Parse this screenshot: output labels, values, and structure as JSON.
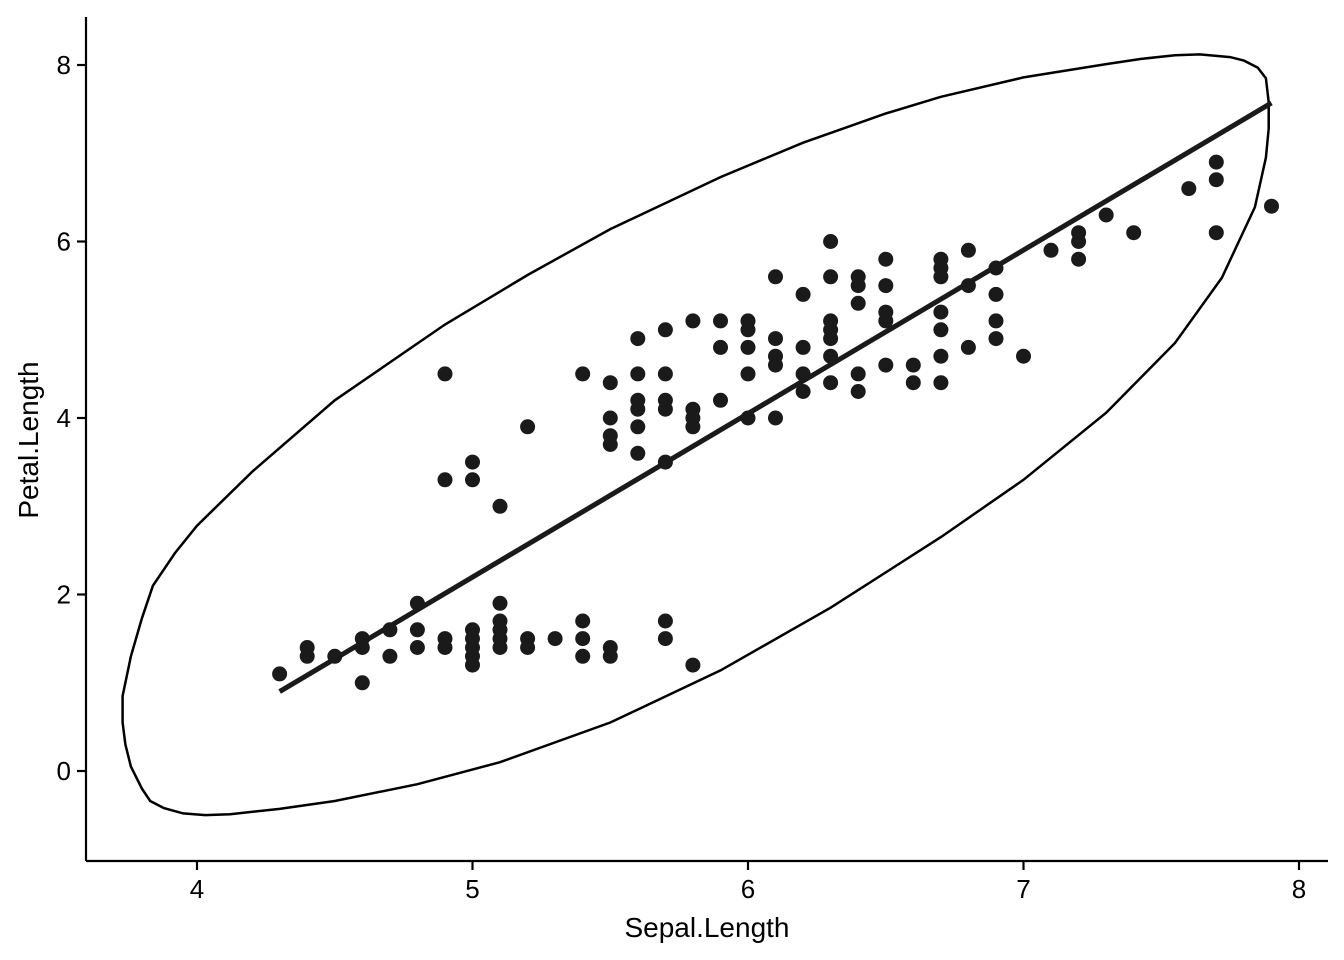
{
  "chart_data": {
    "type": "scatter",
    "xlabel": "Sepal.Length",
    "ylabel": "Petal.Length",
    "xlim": [
      3.6,
      8.1
    ],
    "ylim": [
      -1.0,
      8.5
    ],
    "x_ticks": [
      4,
      5,
      6,
      7,
      8
    ],
    "y_ticks": [
      0,
      2,
      4,
      6,
      8
    ],
    "x_tick_labels": [
      "4",
      "5",
      "6",
      "7",
      "8"
    ],
    "y_tick_labels": [
      "0",
      "2",
      "4",
      "6",
      "8"
    ],
    "grid": false,
    "colors": {
      "points": "#1a1a1a",
      "line": "#1a1a1a",
      "ellipse": "#000000",
      "axis": "#000000"
    },
    "points": [
      [
        4.3,
        1.1
      ],
      [
        4.4,
        1.3
      ],
      [
        4.4,
        1.4
      ],
      [
        4.5,
        1.3
      ],
      [
        4.6,
        1.0
      ],
      [
        4.6,
        1.4
      ],
      [
        4.6,
        1.5
      ],
      [
        4.7,
        1.3
      ],
      [
        4.7,
        1.6
      ],
      [
        4.8,
        1.4
      ],
      [
        4.8,
        1.6
      ],
      [
        4.8,
        1.9
      ],
      [
        4.9,
        1.4
      ],
      [
        4.9,
        1.5
      ],
      [
        5.0,
        1.2
      ],
      [
        5.0,
        1.3
      ],
      [
        5.0,
        1.4
      ],
      [
        5.0,
        1.5
      ],
      [
        5.0,
        1.6
      ],
      [
        5.1,
        1.4
      ],
      [
        5.1,
        1.5
      ],
      [
        5.1,
        1.6
      ],
      [
        5.1,
        1.7
      ],
      [
        5.1,
        1.9
      ],
      [
        5.2,
        1.4
      ],
      [
        5.2,
        1.5
      ],
      [
        5.3,
        1.5
      ],
      [
        5.4,
        1.3
      ],
      [
        5.4,
        1.5
      ],
      [
        5.4,
        1.7
      ],
      [
        5.5,
        1.3
      ],
      [
        5.5,
        1.4
      ],
      [
        5.7,
        1.5
      ],
      [
        5.7,
        1.7
      ],
      [
        5.8,
        1.2
      ],
      [
        4.9,
        3.3
      ],
      [
        4.9,
        4.5
      ],
      [
        5.0,
        3.3
      ],
      [
        5.0,
        3.5
      ],
      [
        5.1,
        3.0
      ],
      [
        5.2,
        3.9
      ],
      [
        5.4,
        4.5
      ],
      [
        5.5,
        3.7
      ],
      [
        5.5,
        3.8
      ],
      [
        5.5,
        4.0
      ],
      [
        5.5,
        4.4
      ],
      [
        5.6,
        3.6
      ],
      [
        5.6,
        3.9
      ],
      [
        5.6,
        4.1
      ],
      [
        5.6,
        4.2
      ],
      [
        5.6,
        4.5
      ],
      [
        5.6,
        4.9
      ],
      [
        5.7,
        3.5
      ],
      [
        5.7,
        4.1
      ],
      [
        5.7,
        4.2
      ],
      [
        5.7,
        4.5
      ],
      [
        5.7,
        5.0
      ],
      [
        5.8,
        3.9
      ],
      [
        5.8,
        4.0
      ],
      [
        5.8,
        4.1
      ],
      [
        5.8,
        5.1
      ],
      [
        5.9,
        4.2
      ],
      [
        5.9,
        4.8
      ],
      [
        5.9,
        5.1
      ],
      [
        6.0,
        4.0
      ],
      [
        6.0,
        4.5
      ],
      [
        6.0,
        4.8
      ],
      [
        6.0,
        5.0
      ],
      [
        6.0,
        5.1
      ],
      [
        6.1,
        4.0
      ],
      [
        6.1,
        4.6
      ],
      [
        6.1,
        4.7
      ],
      [
        6.1,
        4.9
      ],
      [
        6.1,
        5.6
      ],
      [
        6.2,
        4.3
      ],
      [
        6.2,
        4.5
      ],
      [
        6.2,
        4.8
      ],
      [
        6.2,
        5.4
      ],
      [
        6.3,
        4.4
      ],
      [
        6.3,
        4.7
      ],
      [
        6.3,
        4.9
      ],
      [
        6.3,
        5.0
      ],
      [
        6.3,
        5.1
      ],
      [
        6.3,
        5.6
      ],
      [
        6.3,
        6.0
      ],
      [
        6.4,
        4.3
      ],
      [
        6.4,
        4.5
      ],
      [
        6.4,
        5.3
      ],
      [
        6.4,
        5.5
      ],
      [
        6.4,
        5.6
      ],
      [
        6.5,
        4.6
      ],
      [
        6.5,
        5.1
      ],
      [
        6.5,
        5.2
      ],
      [
        6.5,
        5.5
      ],
      [
        6.5,
        5.8
      ],
      [
        6.6,
        4.4
      ],
      [
        6.6,
        4.6
      ],
      [
        6.7,
        4.4
      ],
      [
        6.7,
        4.7
      ],
      [
        6.7,
        5.0
      ],
      [
        6.7,
        5.2
      ],
      [
        6.7,
        5.6
      ],
      [
        6.7,
        5.7
      ],
      [
        6.7,
        5.8
      ],
      [
        6.8,
        4.8
      ],
      [
        6.8,
        5.5
      ],
      [
        6.8,
        5.9
      ],
      [
        6.9,
        4.9
      ],
      [
        6.9,
        5.1
      ],
      [
        6.9,
        5.4
      ],
      [
        6.9,
        5.7
      ],
      [
        7.0,
        4.7
      ],
      [
        7.1,
        5.9
      ],
      [
        7.2,
        5.8
      ],
      [
        7.2,
        6.0
      ],
      [
        7.2,
        6.1
      ],
      [
        7.3,
        6.3
      ],
      [
        7.4,
        6.1
      ],
      [
        7.6,
        6.6
      ],
      [
        7.7,
        6.1
      ],
      [
        7.7,
        6.7
      ],
      [
        7.7,
        6.9
      ],
      [
        7.9,
        6.4
      ]
    ],
    "regression_line": {
      "x": [
        4.3,
        7.9
      ],
      "y": [
        0.9,
        7.57
      ]
    },
    "ellipse": [
      [
        7.89,
        7.58
      ],
      [
        7.88,
        7.85
      ],
      [
        7.85,
        7.97
      ],
      [
        7.8,
        8.05
      ],
      [
        7.75,
        8.09
      ],
      [
        7.64,
        8.12
      ],
      [
        7.55,
        8.11
      ],
      [
        7.43,
        8.07
      ],
      [
        7.3,
        8.01
      ],
      [
        7.0,
        7.86
      ],
      [
        6.7,
        7.64
      ],
      [
        6.5,
        7.45
      ],
      [
        6.2,
        7.12
      ],
      [
        5.9,
        6.73
      ],
      [
        5.5,
        6.14
      ],
      [
        5.2,
        5.62
      ],
      [
        4.9,
        5.06
      ],
      [
        4.5,
        4.2
      ],
      [
        4.2,
        3.39
      ],
      [
        4.0,
        2.78
      ],
      [
        3.92,
        2.47
      ],
      [
        3.84,
        2.1
      ],
      [
        3.8,
        1.73
      ],
      [
        3.76,
        1.3
      ],
      [
        3.73,
        0.85
      ],
      [
        3.73,
        0.55
      ],
      [
        3.74,
        0.3
      ],
      [
        3.76,
        0.05
      ],
      [
        3.8,
        -0.2
      ],
      [
        3.83,
        -0.34
      ],
      [
        3.88,
        -0.42
      ],
      [
        3.95,
        -0.48
      ],
      [
        4.03,
        -0.5
      ],
      [
        4.12,
        -0.49
      ],
      [
        4.3,
        -0.43
      ],
      [
        4.5,
        -0.34
      ],
      [
        4.8,
        -0.15
      ],
      [
        5.1,
        0.1
      ],
      [
        5.5,
        0.55
      ],
      [
        5.9,
        1.14
      ],
      [
        6.3,
        1.85
      ],
      [
        6.7,
        2.65
      ],
      [
        7.0,
        3.3
      ],
      [
        7.3,
        4.06
      ],
      [
        7.55,
        4.85
      ],
      [
        7.72,
        5.59
      ],
      [
        7.84,
        6.39
      ],
      [
        7.88,
        6.95
      ],
      [
        7.89,
        7.28
      ],
      [
        7.89,
        7.58
      ]
    ]
  }
}
